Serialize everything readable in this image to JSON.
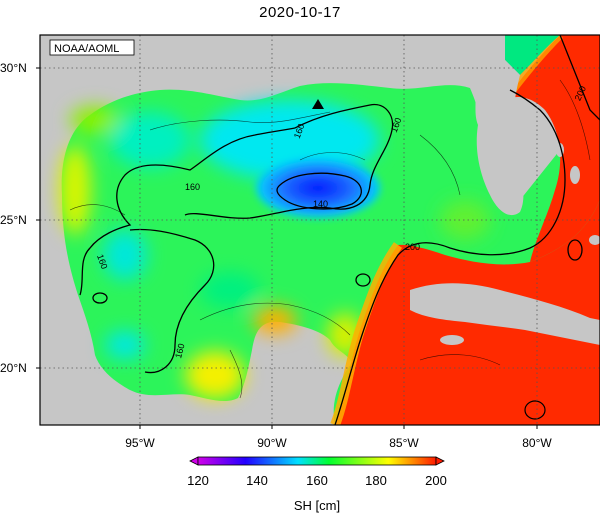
{
  "title": "2020-10-17",
  "credit": "NOAA/AOML",
  "colors": {
    "land": "#c6c6c6",
    "frame": "#000000",
    "grid": "#555555",
    "scale": [
      "#d000e8",
      "#2200ff",
      "#00e0ff",
      "#00ff30",
      "#ffff00",
      "#ff1a00"
    ]
  },
  "axes": {
    "lat_ticks": [
      "30°N",
      "25°N",
      "20°N"
    ],
    "lon_ticks": [
      "95°W",
      "90°W",
      "85°W",
      "80°W"
    ]
  },
  "contour_labels": [
    "160",
    "160",
    "160",
    "160",
    "160",
    "140",
    "200",
    "200"
  ],
  "marker": {
    "name": "triangle-marker"
  },
  "colorbar": {
    "label": "SH [cm]",
    "ticks": [
      "120",
      "140",
      "160",
      "180",
      "200"
    ],
    "min": 120,
    "max": 200
  }
}
